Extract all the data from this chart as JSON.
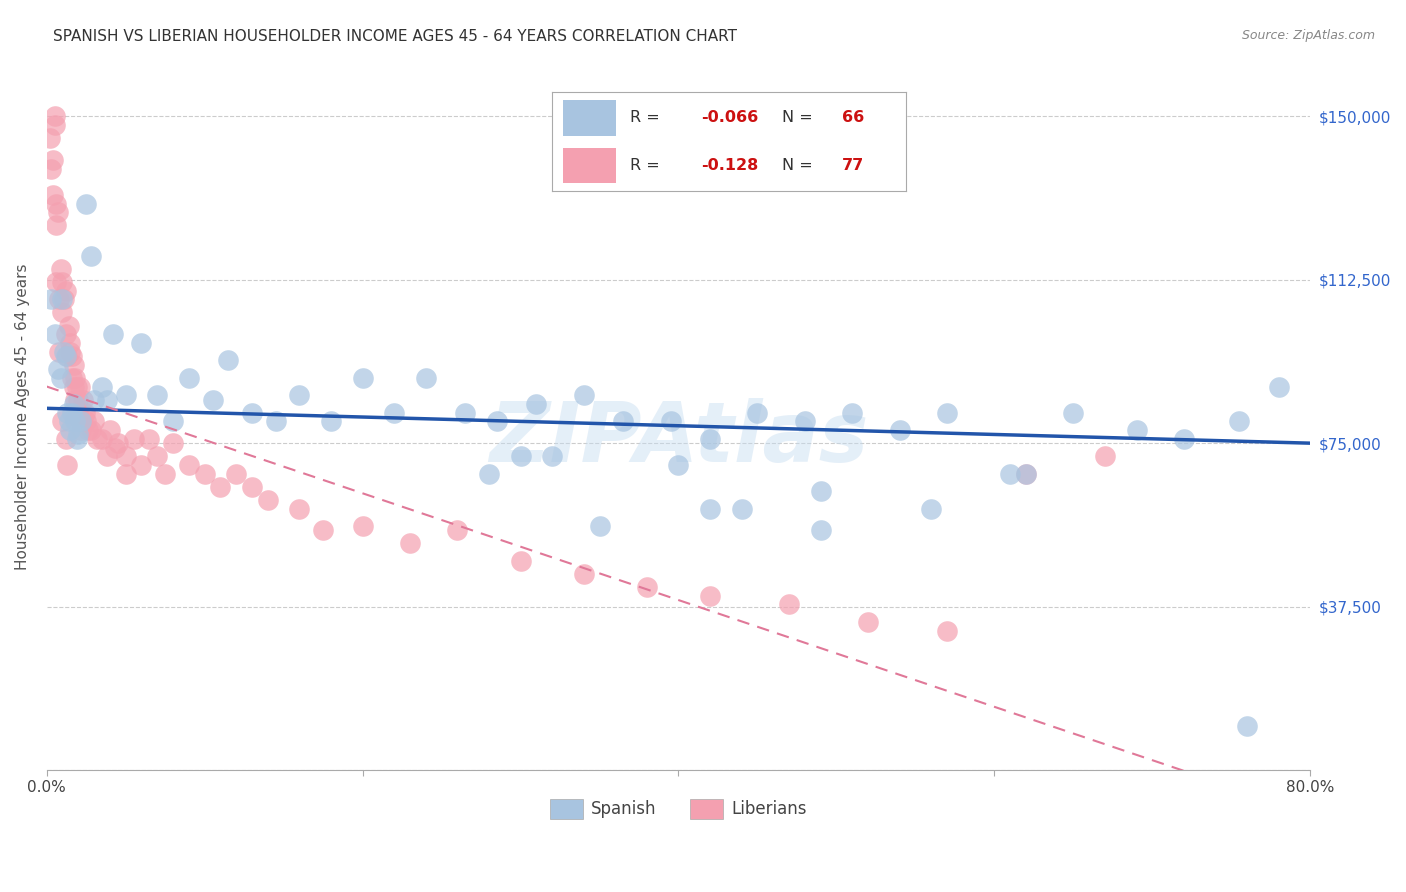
{
  "title": "SPANISH VS LIBERIAN HOUSEHOLDER INCOME AGES 45 - 64 YEARS CORRELATION CHART",
  "source": "Source: ZipAtlas.com",
  "ylabel": "Householder Income Ages 45 - 64 years",
  "y_ticks": [
    0,
    37500,
    75000,
    112500,
    150000
  ],
  "y_tick_labels": [
    "",
    "$37,500",
    "$75,000",
    "$112,500",
    "$150,000"
  ],
  "x_min": 0.0,
  "x_max": 0.8,
  "y_min": 0,
  "y_max": 162000,
  "spanish_color": "#a8c4e0",
  "liberian_color": "#f4a0b0",
  "trend_spanish_color": "#2255aa",
  "trend_liberian_color": "#e07898",
  "watermark": "ZIPAtlas",
  "spanish_x": [
    0.003,
    0.005,
    0.007,
    0.009,
    0.01,
    0.011,
    0.012,
    0.013,
    0.014,
    0.015,
    0.016,
    0.017,
    0.018,
    0.019,
    0.02,
    0.022,
    0.025,
    0.028,
    0.03,
    0.035,
    0.038,
    0.042,
    0.05,
    0.06,
    0.07,
    0.08,
    0.09,
    0.105,
    0.115,
    0.13,
    0.145,
    0.16,
    0.18,
    0.2,
    0.22,
    0.24,
    0.265,
    0.285,
    0.31,
    0.34,
    0.365,
    0.395,
    0.42,
    0.45,
    0.48,
    0.51,
    0.54,
    0.57,
    0.61,
    0.65,
    0.69,
    0.72,
    0.755,
    0.78,
    0.35,
    0.28,
    0.42,
    0.49,
    0.56,
    0.32,
    0.44,
    0.62,
    0.49,
    0.76,
    0.4,
    0.3
  ],
  "spanish_y": [
    108000,
    100000,
    92000,
    90000,
    108000,
    96000,
    95000,
    82000,
    80000,
    78000,
    82000,
    84000,
    80000,
    76000,
    77000,
    80000,
    130000,
    118000,
    85000,
    88000,
    85000,
    100000,
    86000,
    98000,
    86000,
    80000,
    90000,
    85000,
    94000,
    82000,
    80000,
    86000,
    80000,
    90000,
    82000,
    90000,
    82000,
    80000,
    84000,
    86000,
    80000,
    80000,
    76000,
    82000,
    80000,
    82000,
    78000,
    82000,
    68000,
    82000,
    78000,
    76000,
    80000,
    88000,
    56000,
    68000,
    60000,
    64000,
    60000,
    72000,
    60000,
    68000,
    55000,
    10000,
    70000,
    72000
  ],
  "liberian_x": [
    0.002,
    0.003,
    0.004,
    0.005,
    0.005,
    0.006,
    0.006,
    0.007,
    0.008,
    0.009,
    0.01,
    0.01,
    0.011,
    0.012,
    0.012,
    0.013,
    0.014,
    0.015,
    0.015,
    0.016,
    0.016,
    0.017,
    0.017,
    0.018,
    0.018,
    0.019,
    0.02,
    0.02,
    0.021,
    0.022,
    0.022,
    0.023,
    0.024,
    0.025,
    0.026,
    0.028,
    0.03,
    0.032,
    0.035,
    0.038,
    0.04,
    0.043,
    0.045,
    0.05,
    0.055,
    0.06,
    0.065,
    0.07,
    0.075,
    0.08,
    0.09,
    0.1,
    0.11,
    0.12,
    0.13,
    0.14,
    0.16,
    0.175,
    0.2,
    0.23,
    0.26,
    0.3,
    0.34,
    0.38,
    0.42,
    0.47,
    0.52,
    0.57,
    0.62,
    0.67,
    0.01,
    0.012,
    0.013,
    0.006,
    0.008,
    0.004,
    0.05
  ],
  "liberian_y": [
    145000,
    138000,
    132000,
    150000,
    148000,
    125000,
    130000,
    128000,
    108000,
    115000,
    105000,
    112000,
    108000,
    100000,
    110000,
    95000,
    102000,
    98000,
    96000,
    90000,
    95000,
    88000,
    93000,
    85000,
    90000,
    88000,
    85000,
    82000,
    88000,
    80000,
    78000,
    85000,
    82000,
    80000,
    78000,
    78000,
    80000,
    76000,
    76000,
    72000,
    78000,
    74000,
    75000,
    72000,
    76000,
    70000,
    76000,
    72000,
    68000,
    75000,
    70000,
    68000,
    65000,
    68000,
    65000,
    62000,
    60000,
    55000,
    56000,
    52000,
    55000,
    48000,
    45000,
    42000,
    40000,
    38000,
    34000,
    32000,
    68000,
    72000,
    80000,
    76000,
    70000,
    112000,
    96000,
    140000,
    68000
  ]
}
